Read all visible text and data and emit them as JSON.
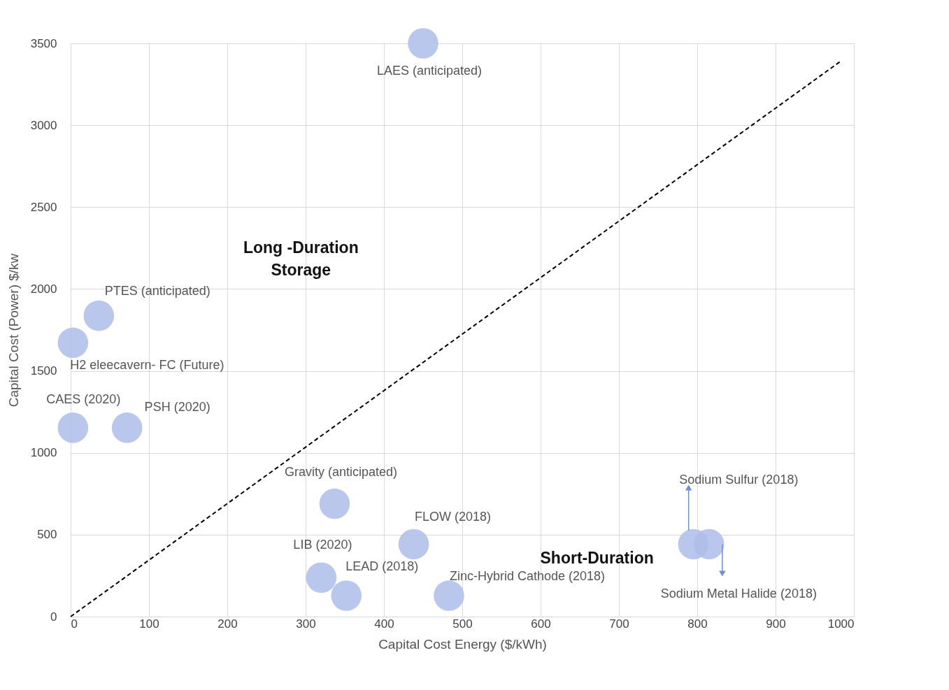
{
  "chart_data": {
    "type": "scatter",
    "xlabel": "Capital Cost Energy ($/kWh)",
    "ylabel": "Capital Cost (Power) $/kw",
    "xlim": [
      0,
      1000
    ],
    "xticks": [
      0,
      100,
      200,
      300,
      400,
      500,
      600,
      700,
      800,
      900,
      1000
    ],
    "ylim": [
      0,
      3500
    ],
    "yticks": [
      0,
      500,
      1000,
      1500,
      2000,
      2500,
      3000,
      3500
    ],
    "grid": true,
    "marker": "circle",
    "series": [
      {
        "type": "scatter",
        "color": "#aebde9",
        "x": [
          450,
          36,
          3,
          3,
          72,
          337,
          438,
          320,
          352,
          483,
          795,
          815
        ],
        "values": [
          3500,
          1837,
          1672,
          1153,
          1153,
          689,
          442,
          238,
          128,
          128,
          442,
          442
        ]
      },
      {
        "type": "line",
        "color": "#000000",
        "line_style": "dashed",
        "marker": "none",
        "x": [
          0,
          984
        ],
        "values": [
          0,
          3394
        ]
      }
    ],
    "annotations": [
      {
        "text": "LAES (anticipated)",
        "x": 450,
        "y": 3500
      },
      {
        "text": "PTES (anticipated)",
        "x": 36,
        "y": 1837
      },
      {
        "text": "H2 eleecavern- FC (Future)",
        "x": 3,
        "y": 1672
      },
      {
        "text": "CAES (2020)",
        "x": 3,
        "y": 1153
      },
      {
        "text": "PSH (2020)",
        "x": 72,
        "y": 1153
      },
      {
        "text": "Gravity (anticipated)",
        "x": 337,
        "y": 689
      },
      {
        "text": "FLOW (2018)",
        "x": 438,
        "y": 442
      },
      {
        "text": "LIB (2020)",
        "x": 320,
        "y": 238
      },
      {
        "text": "LEAD (2018)",
        "x": 352,
        "y": 128
      },
      {
        "text": "Zinc-Hybrid Cathode (2018)",
        "x": 483,
        "y": 128
      },
      "Sodium Sulfur (2018)",
      "Sodium Metal Halide (2018)",
      "Long -Duration\nStorage",
      "Short-Duration"
    ]
  }
}
